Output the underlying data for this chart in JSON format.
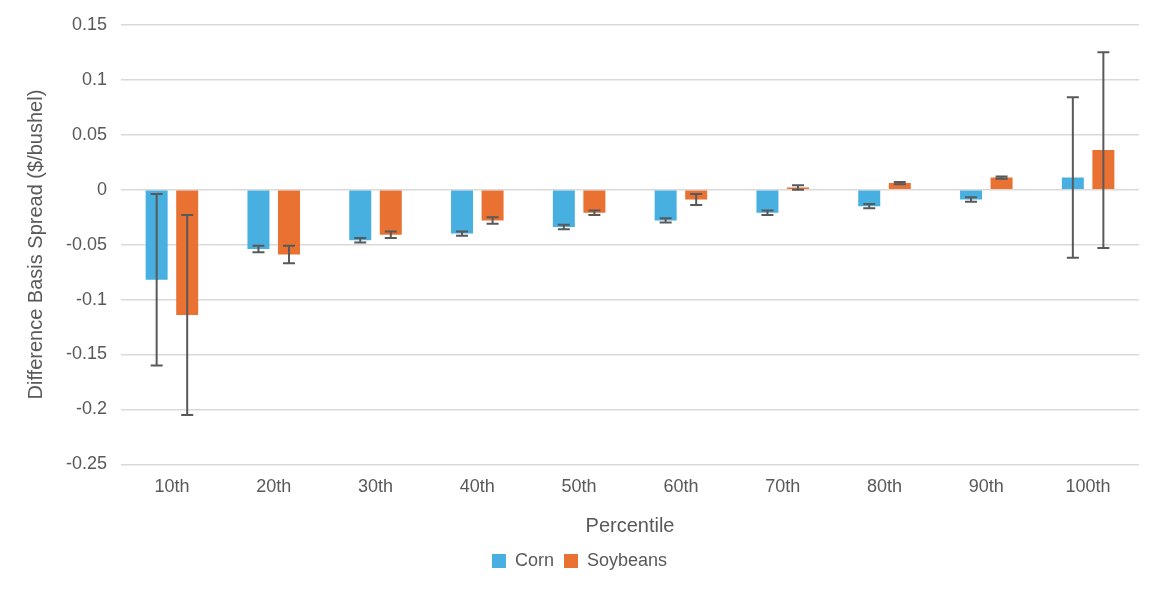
{
  "chart_data": {
    "type": "bar",
    "xlabel": "Percentile",
    "ylabel": "Difference Basis Spread ($/bushel)",
    "categories": [
      "10th",
      "20th",
      "30th",
      "40th",
      "50th",
      "60th",
      "70th",
      "80th",
      "90th",
      "100th"
    ],
    "series": [
      {
        "name": "Corn",
        "color": "#47b0e0",
        "values": [
          -0.082,
          -0.054,
          -0.046,
          -0.04,
          -0.034,
          -0.028,
          -0.021,
          -0.015,
          -0.009,
          0.011
        ],
        "errors": [
          0.078,
          0.003,
          0.002,
          0.002,
          0.002,
          0.002,
          0.002,
          0.002,
          0.002,
          0.073
        ]
      },
      {
        "name": "Soybeans",
        "color": "#e97132",
        "values": [
          -0.114,
          -0.059,
          -0.041,
          -0.028,
          -0.021,
          -0.009,
          0.002,
          0.006,
          0.011,
          0.036
        ],
        "errors": [
          0.091,
          0.008,
          0.003,
          0.003,
          0.002,
          0.005,
          0.002,
          0.001,
          0.001,
          0.089
        ]
      }
    ],
    "ylim": [
      -0.25,
      0.15
    ],
    "yticks": [
      -0.25,
      -0.2,
      -0.15,
      -0.1,
      -0.05,
      0,
      0.05,
      0.1,
      0.15
    ],
    "grid": "y",
    "legend": "bottom"
  }
}
